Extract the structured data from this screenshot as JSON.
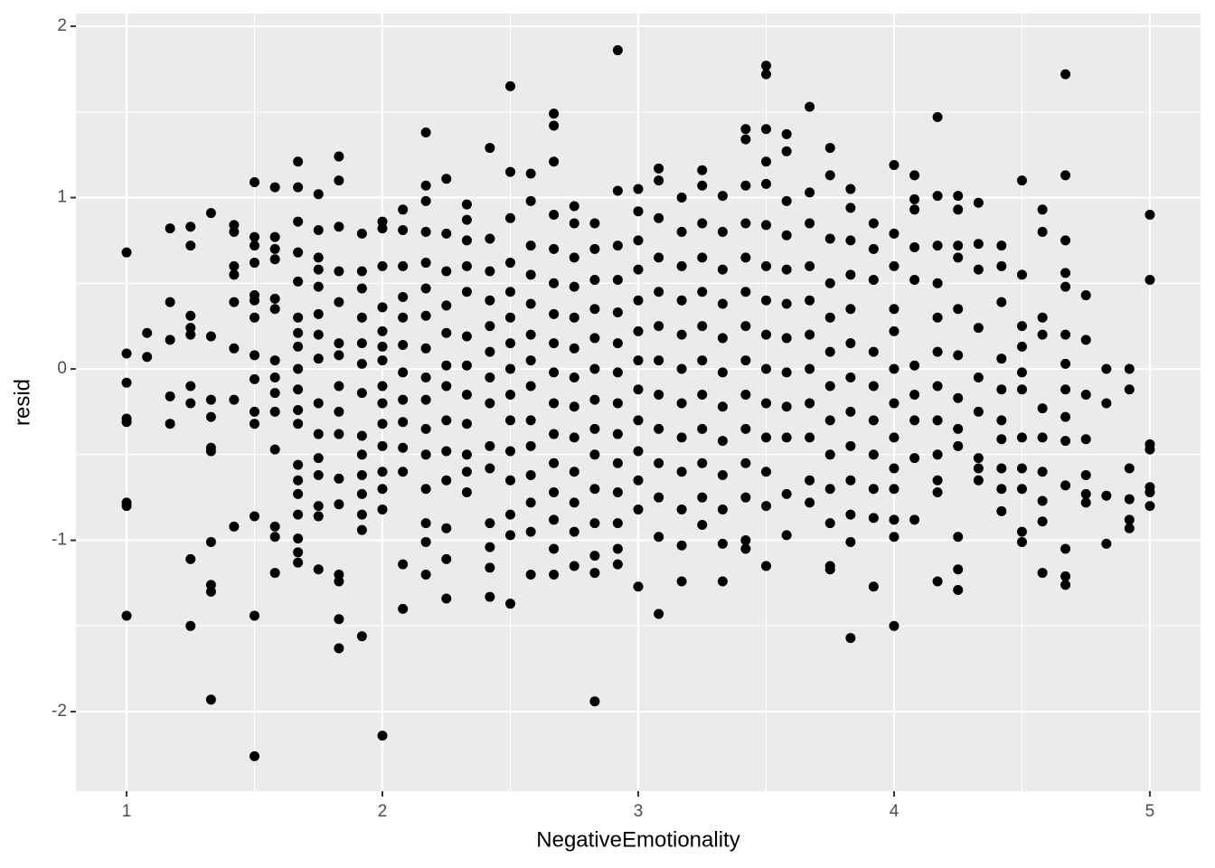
{
  "chart_data": {
    "type": "scatter",
    "x_label": "NegativeEmotionality",
    "y_label": "resid",
    "xlim": [
      0.802,
      5.198
    ],
    "ylim": [
      -2.464,
      2.074
    ],
    "xticks": [
      1,
      2,
      3,
      4,
      5
    ],
    "yticks": [
      -2,
      -1,
      0,
      1,
      2
    ],
    "x_minor_breaks": [
      1.5,
      2.5,
      3.5,
      4.5
    ],
    "y_minor_breaks": [
      -1.5,
      -0.5,
      0.5,
      1.5
    ],
    "grid": true,
    "color": "#000000",
    "panel_color": "#ebebeb",
    "groups": [
      {
        "x": 1,
        "y": [
          0.68,
          0.09,
          -0.08,
          -0.29,
          -0.31,
          -0.78,
          -0.8,
          -1.44
        ]
      },
      {
        "x": 1.08,
        "y": [
          0.21,
          0.07
        ]
      },
      {
        "x": 1.17,
        "y": [
          0.82,
          0.39,
          0.17,
          -0.16,
          -0.32
        ]
      },
      {
        "x": 1.25,
        "y": [
          0.83,
          0.72,
          0.31,
          0.24,
          0.2,
          -0.1,
          -0.2,
          -1.11,
          -1.5
        ]
      },
      {
        "x": 1.33,
        "y": [
          0.91,
          0.19,
          -0.18,
          -0.28,
          -0.46,
          -0.48,
          -1.01,
          -1.26,
          -1.3,
          -1.93
        ]
      },
      {
        "x": 1.42,
        "y": [
          0.84,
          0.8,
          0.6,
          0.55,
          0.39,
          0.12,
          -0.18,
          -0.92
        ]
      },
      {
        "x": 1.5,
        "y": [
          1.09,
          0.77,
          0.72,
          0.62,
          0.43,
          0.4,
          0.3,
          0.08,
          -0.06,
          -0.25,
          -0.32,
          -0.86,
          -1.44,
          -2.26
        ]
      },
      {
        "x": 1.58,
        "y": [
          1.06,
          0.77,
          0.7,
          0.64,
          0.41,
          0.35,
          0.05,
          -0.05,
          -0.14,
          -0.25,
          -0.47,
          -0.92,
          -0.98,
          -1.19
        ]
      },
      {
        "x": 1.67,
        "y": [
          1.21,
          1.06,
          0.86,
          0.68,
          0.51,
          0.3,
          0.21,
          0.13,
          0.0,
          -0.12,
          -0.24,
          -0.32,
          -0.56,
          -0.65,
          -0.73,
          -0.85,
          -0.99,
          -1.07,
          -1.13
        ]
      },
      {
        "x": 1.75,
        "y": [
          1.02,
          0.81,
          0.65,
          0.58,
          0.48,
          0.32,
          0.2,
          0.06,
          -0.2,
          -0.38,
          -0.52,
          -0.62,
          -0.8,
          -0.86,
          -1.17
        ]
      },
      {
        "x": 1.83,
        "y": [
          1.24,
          1.1,
          0.83,
          0.57,
          0.39,
          0.15,
          0.08,
          -0.1,
          -0.25,
          -0.38,
          -0.64,
          -0.79,
          -1.2,
          -1.24,
          -1.46,
          -1.63
        ]
      },
      {
        "x": 1.92,
        "y": [
          0.79,
          0.57,
          0.47,
          0.3,
          0.15,
          0.03,
          -0.14,
          -0.39,
          -0.5,
          -0.62,
          -0.73,
          -0.85,
          -0.94,
          -1.56
        ]
      },
      {
        "x": 2,
        "y": [
          0.86,
          0.82,
          0.6,
          0.36,
          0.22,
          0.13,
          0.05,
          -0.1,
          -0.2,
          -0.32,
          -0.45,
          -0.6,
          -0.7,
          -0.82,
          -2.14
        ]
      },
      {
        "x": 2.08,
        "y": [
          0.93,
          0.81,
          0.6,
          0.42,
          0.3,
          0.14,
          -0.02,
          -0.18,
          -0.31,
          -0.46,
          -0.6,
          -1.14,
          -1.4
        ]
      },
      {
        "x": 2.17,
        "y": [
          1.38,
          1.07,
          0.98,
          0.8,
          0.62,
          0.47,
          0.31,
          0.12,
          -0.05,
          -0.18,
          -0.35,
          -0.5,
          -0.7,
          -0.9,
          -1.01,
          -1.2
        ]
      },
      {
        "x": 2.25,
        "y": [
          1.11,
          0.79,
          0.57,
          0.37,
          0.21,
          0.02,
          -0.1,
          -0.3,
          -0.48,
          -0.65,
          -0.93,
          -1.11,
          -1.34
        ]
      },
      {
        "x": 2.33,
        "y": [
          0.96,
          0.87,
          0.75,
          0.6,
          0.45,
          0.19,
          0.02,
          -0.15,
          -0.32,
          -0.5,
          -0.6,
          -0.72
        ]
      },
      {
        "x": 2.42,
        "y": [
          1.29,
          0.76,
          0.57,
          0.4,
          0.25,
          0.1,
          -0.05,
          -0.2,
          -0.45,
          -0.58,
          -0.9,
          -1.04,
          -1.16,
          -1.33
        ]
      },
      {
        "x": 2.5,
        "y": [
          1.65,
          1.15,
          0.88,
          0.62,
          0.45,
          0.3,
          0.15,
          0.0,
          -0.15,
          -0.3,
          -0.48,
          -0.65,
          -0.85,
          -0.97,
          -1.37
        ]
      },
      {
        "x": 2.58,
        "y": [
          1.14,
          0.98,
          0.72,
          0.55,
          0.38,
          0.2,
          0.05,
          -0.1,
          -0.3,
          -0.45,
          -0.62,
          -0.78,
          -0.95,
          -1.2
        ]
      },
      {
        "x": 2.67,
        "y": [
          1.49,
          1.42,
          1.21,
          0.9,
          0.7,
          0.5,
          0.32,
          0.15,
          -0.02,
          -0.2,
          -0.38,
          -0.55,
          -0.72,
          -0.88,
          -1.05,
          -1.2
        ]
      },
      {
        "x": 2.75,
        "y": [
          0.95,
          0.85,
          0.65,
          0.48,
          0.3,
          0.12,
          -0.05,
          -0.22,
          -0.4,
          -0.6,
          -0.78,
          -0.95,
          -1.15
        ]
      },
      {
        "x": 2.83,
        "y": [
          0.85,
          0.7,
          0.52,
          0.35,
          0.18,
          0.0,
          -0.18,
          -0.35,
          -0.5,
          -0.7,
          -0.9,
          -1.09,
          -1.19,
          -1.94
        ]
      },
      {
        "x": 2.92,
        "y": [
          1.86,
          1.04,
          0.72,
          0.52,
          0.33,
          0.15,
          -0.02,
          -0.2,
          -0.38,
          -0.55,
          -0.72,
          -0.9,
          -1.05,
          -1.14
        ]
      },
      {
        "x": 3,
        "y": [
          1.05,
          0.92,
          0.75,
          0.58,
          0.4,
          0.22,
          0.05,
          -0.12,
          -0.3,
          -0.48,
          -0.65,
          -0.82,
          -1.27
        ]
      },
      {
        "x": 3.08,
        "y": [
          1.17,
          1.1,
          0.88,
          0.65,
          0.45,
          0.25,
          0.05,
          -0.15,
          -0.35,
          -0.55,
          -0.75,
          -0.98,
          -1.43
        ]
      },
      {
        "x": 3.17,
        "y": [
          1.0,
          0.8,
          0.6,
          0.4,
          0.2,
          0.0,
          -0.2,
          -0.4,
          -0.6,
          -0.82,
          -1.03,
          -1.24
        ]
      },
      {
        "x": 3.25,
        "y": [
          1.16,
          1.07,
          0.85,
          0.65,
          0.45,
          0.25,
          0.05,
          -0.15,
          -0.35,
          -0.55,
          -0.75,
          -0.91
        ]
      },
      {
        "x": 3.33,
        "y": [
          1.01,
          0.8,
          0.58,
          0.38,
          0.18,
          -0.02,
          -0.22,
          -0.42,
          -0.62,
          -0.82,
          -1.02,
          -1.24
        ]
      },
      {
        "x": 3.42,
        "y": [
          1.4,
          1.34,
          1.07,
          0.85,
          0.65,
          0.45,
          0.25,
          0.05,
          -0.15,
          -0.35,
          -0.55,
          -0.75,
          -1.0,
          -1.05
        ]
      },
      {
        "x": 3.5,
        "y": [
          1.77,
          1.72,
          1.4,
          1.21,
          1.08,
          0.84,
          0.6,
          0.4,
          0.2,
          0.0,
          -0.2,
          -0.4,
          -0.6,
          -0.8,
          -1.15
        ]
      },
      {
        "x": 3.58,
        "y": [
          1.37,
          1.27,
          0.98,
          0.78,
          0.58,
          0.38,
          0.18,
          -0.02,
          -0.22,
          -0.4,
          -0.73,
          -0.97
        ]
      },
      {
        "x": 3.67,
        "y": [
          1.53,
          1.03,
          0.85,
          0.6,
          0.4,
          0.2,
          0.0,
          -0.2,
          -0.4,
          -0.65,
          -0.78
        ]
      },
      {
        "x": 3.75,
        "y": [
          1.29,
          1.13,
          0.76,
          0.5,
          0.3,
          0.1,
          -0.1,
          -0.3,
          -0.5,
          -0.7,
          -0.9,
          -1.15,
          -1.17
        ]
      },
      {
        "x": 3.83,
        "y": [
          1.05,
          0.94,
          0.75,
          0.55,
          0.35,
          0.15,
          -0.05,
          -0.25,
          -0.45,
          -0.65,
          -0.85,
          -1.01,
          -1.57
        ]
      },
      {
        "x": 3.92,
        "y": [
          0.85,
          0.7,
          0.52,
          0.1,
          -0.1,
          -0.3,
          -0.5,
          -0.7,
          -0.87,
          -1.27
        ]
      },
      {
        "x": 4,
        "y": [
          1.19,
          0.79,
          0.6,
          0.35,
          0.22,
          0.0,
          -0.2,
          -0.4,
          -0.58,
          -0.7,
          -0.88,
          -0.98,
          -1.5
        ]
      },
      {
        "x": 4.08,
        "y": [
          1.13,
          0.99,
          0.93,
          0.71,
          0.52,
          0.02,
          -0.15,
          -0.3,
          -0.52,
          -0.88
        ]
      },
      {
        "x": 4.17,
        "y": [
          1.47,
          1.01,
          0.72,
          0.5,
          0.3,
          0.1,
          -0.1,
          -0.3,
          -0.5,
          -0.65,
          -0.72,
          -1.24
        ]
      },
      {
        "x": 4.25,
        "y": [
          1.01,
          0.93,
          0.72,
          0.65,
          0.35,
          0.08,
          -0.17,
          -0.35,
          -0.45,
          -0.98,
          -1.17,
          -1.29
        ]
      },
      {
        "x": 4.33,
        "y": [
          0.97,
          0.73,
          0.58,
          0.24,
          -0.05,
          -0.25,
          -0.52,
          -0.58,
          -0.65
        ]
      },
      {
        "x": 4.42,
        "y": [
          0.72,
          0.6,
          0.39,
          0.06,
          -0.12,
          -0.3,
          -0.41,
          -0.58,
          -0.7,
          -0.83
        ]
      },
      {
        "x": 4.5,
        "y": [
          1.1,
          0.55,
          0.25,
          0.13,
          -0.02,
          -0.12,
          -0.4,
          -0.58,
          -0.7,
          -0.95,
          -1.01
        ]
      },
      {
        "x": 4.58,
        "y": [
          0.93,
          0.8,
          0.3,
          0.2,
          -0.23,
          -0.4,
          -0.6,
          -0.77,
          -0.89,
          -1.19
        ]
      },
      {
        "x": 4.67,
        "y": [
          1.72,
          1.13,
          0.75,
          0.56,
          0.48,
          0.2,
          0.03,
          -0.12,
          -0.28,
          -0.42,
          -0.68,
          -1.05,
          -1.21,
          -1.26
        ]
      },
      {
        "x": 4.75,
        "y": [
          0.43,
          0.17,
          -0.15,
          -0.41,
          -0.62,
          -0.73,
          -0.78
        ]
      },
      {
        "x": 4.83,
        "y": [
          0.0,
          -0.2,
          -0.74,
          -1.02
        ]
      },
      {
        "x": 4.92,
        "y": [
          0.0,
          -0.12,
          -0.58,
          -0.76,
          -0.88,
          -0.93
        ]
      },
      {
        "x": 5,
        "y": [
          0.9,
          0.52,
          -0.44,
          -0.47,
          -0.69,
          -0.72,
          -0.8
        ]
      }
    ]
  }
}
